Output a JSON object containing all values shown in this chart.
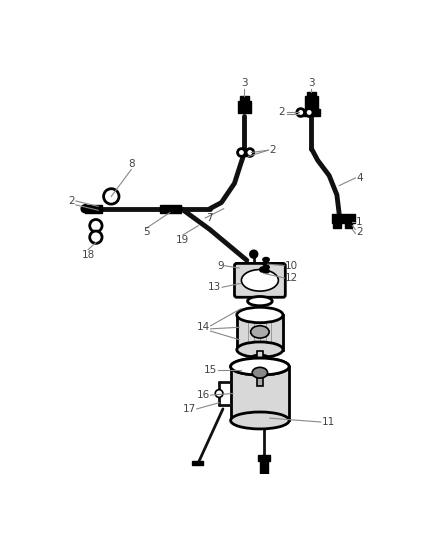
{
  "bg_color": "#ffffff",
  "lw_tube": 3.5,
  "lw_med": 2.0,
  "lw_thin": 1.2,
  "lw_leader": 0.8,
  "figsize": [
    4.38,
    5.33
  ],
  "dpi": 100,
  "label_color": "#444444",
  "leader_color": "#888888",
  "part_fill": "#d8d8d8",
  "part_edge": "#111111"
}
